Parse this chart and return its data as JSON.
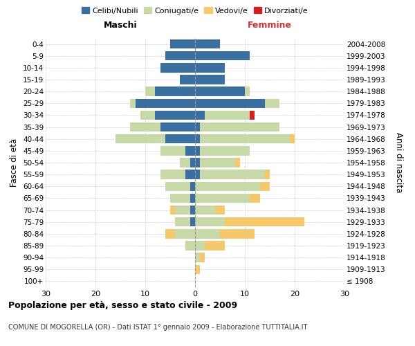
{
  "age_groups": [
    "100+",
    "95-99",
    "90-94",
    "85-89",
    "80-84",
    "75-79",
    "70-74",
    "65-69",
    "60-64",
    "55-59",
    "50-54",
    "45-49",
    "40-44",
    "35-39",
    "30-34",
    "25-29",
    "20-24",
    "15-19",
    "10-14",
    "5-9",
    "0-4"
  ],
  "birth_years": [
    "≤ 1908",
    "1909-1913",
    "1914-1918",
    "1919-1923",
    "1924-1928",
    "1929-1933",
    "1934-1938",
    "1939-1943",
    "1944-1948",
    "1949-1953",
    "1954-1958",
    "1959-1963",
    "1964-1968",
    "1969-1973",
    "1974-1978",
    "1979-1983",
    "1984-1988",
    "1989-1993",
    "1994-1998",
    "1999-2003",
    "2004-2008"
  ],
  "colors": {
    "celibi": "#3a6fa0",
    "coniugati": "#c8d9a8",
    "vedovi": "#f5c86e",
    "divorziati": "#cc2222"
  },
  "male": {
    "celibi": [
      0,
      0,
      0,
      0,
      0,
      1,
      1,
      1,
      1,
      2,
      1,
      2,
      6,
      7,
      8,
      12,
      8,
      3,
      7,
      6,
      5
    ],
    "coniugati": [
      0,
      0,
      0,
      2,
      4,
      3,
      3,
      4,
      5,
      5,
      2,
      5,
      10,
      6,
      3,
      1,
      2,
      0,
      0,
      0,
      0
    ],
    "vedovi": [
      0,
      0,
      0,
      0,
      2,
      0,
      1,
      0,
      0,
      0,
      0,
      0,
      0,
      0,
      0,
      0,
      0,
      0,
      0,
      0,
      0
    ],
    "divorziati": [
      0,
      0,
      0,
      0,
      0,
      0,
      0,
      0,
      0,
      0,
      0,
      0,
      0,
      0,
      0,
      0,
      0,
      0,
      0,
      0,
      0
    ]
  },
  "female": {
    "nubili": [
      0,
      0,
      0,
      0,
      0,
      0,
      0,
      0,
      0,
      1,
      1,
      1,
      1,
      1,
      2,
      14,
      10,
      6,
      6,
      11,
      5
    ],
    "coniugate": [
      0,
      0,
      1,
      2,
      5,
      6,
      4,
      11,
      13,
      13,
      7,
      10,
      18,
      16,
      9,
      3,
      1,
      0,
      0,
      0,
      0
    ],
    "vedove": [
      0,
      1,
      1,
      4,
      7,
      16,
      2,
      2,
      2,
      1,
      1,
      0,
      1,
      0,
      0,
      0,
      0,
      0,
      0,
      0,
      0
    ],
    "divorziate": [
      0,
      0,
      0,
      0,
      0,
      0,
      0,
      0,
      0,
      0,
      0,
      0,
      0,
      0,
      1,
      0,
      0,
      0,
      0,
      0,
      0
    ]
  },
  "title": "Popolazione per età, sesso e stato civile - 2009",
  "subtitle": "COMUNE DI MOGORELLA (OR) - Dati ISTAT 1° gennaio 2009 - Elaborazione TUTTITALIA.IT",
  "ylabel_left": "Fasce di età",
  "ylabel_right": "Anni di nascita",
  "xlabel_left": "Maschi",
  "xlabel_right": "Femmine",
  "xlim": 30,
  "legend_labels": [
    "Celibi/Nubili",
    "Coniugati/e",
    "Vedovi/e",
    "Divorziati/e"
  ]
}
